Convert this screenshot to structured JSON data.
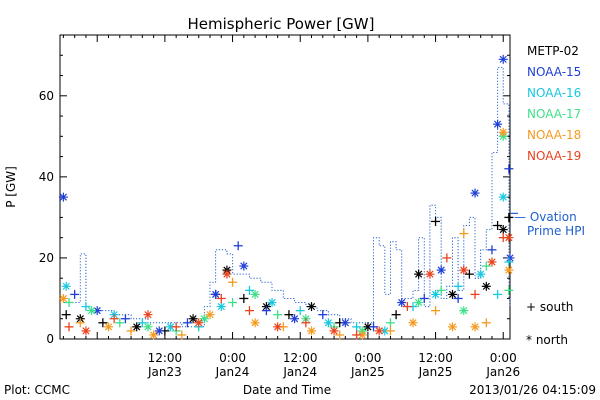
{
  "chart_data": {
    "type": "scatter",
    "title": "Hemispheric Power [GW]",
    "ylabel": "P [GW]",
    "xlabel": "Date and Time",
    "ylim": [
      0,
      75
    ],
    "yticks": [
      0,
      20,
      40,
      60
    ],
    "x_unit": "hours since Jan23 00:00",
    "xlim": [
      -6.6,
      73.2
    ],
    "xticks": [
      {
        "t": 12,
        "time": "12:00",
        "date": "Jan23"
      },
      {
        "t": 24,
        "time": "0:00",
        "date": "Jan24"
      },
      {
        "t": 36,
        "time": "12:00",
        "date": "Jan24"
      },
      {
        "t": 48,
        "time": "0:00",
        "date": "Jan25"
      },
      {
        "t": 60,
        "time": "12:00",
        "date": "Jan25"
      },
      {
        "t": 72,
        "time": "0:00",
        "date": "Jan26"
      }
    ],
    "legend_position": "right",
    "legend": [
      {
        "name": "METP-02",
        "color": "#000000"
      },
      {
        "name": "NOAA-15",
        "color": "#1f3fd6"
      },
      {
        "name": "NOAA-16",
        "color": "#18c8e0"
      },
      {
        "name": "NOAA-17",
        "color": "#3de08a"
      },
      {
        "name": "NOAA-18",
        "color": "#f59a1e"
      },
      {
        "name": "NOAA-19",
        "color": "#e8431e"
      }
    ],
    "ovation_label_1": "— Ovation",
    "ovation_label_2": "Prime HPI",
    "ovation_color": "#1f5fd0",
    "marker_south": "+ south",
    "marker_north": "* north",
    "ovation_step": [
      [
        -6,
        9
      ],
      [
        -4,
        9
      ],
      [
        -3,
        21
      ],
      [
        -2,
        7
      ],
      [
        1,
        7
      ],
      [
        3,
        6
      ],
      [
        6,
        5
      ],
      [
        9,
        4
      ],
      [
        13,
        4
      ],
      [
        15,
        3
      ],
      [
        17,
        3
      ],
      [
        19,
        8
      ],
      [
        20,
        14
      ],
      [
        21,
        22
      ],
      [
        23,
        21
      ],
      [
        24,
        16
      ],
      [
        26,
        16
      ],
      [
        27,
        15
      ],
      [
        29,
        14
      ],
      [
        31,
        12
      ],
      [
        33,
        10
      ],
      [
        35,
        9
      ],
      [
        37,
        8
      ],
      [
        39,
        7
      ],
      [
        41,
        6
      ],
      [
        43,
        5
      ],
      [
        45,
        4
      ],
      [
        47,
        4
      ],
      [
        48,
        4
      ],
      [
        49,
        25
      ],
      [
        50,
        23
      ],
      [
        51,
        11
      ],
      [
        52,
        24
      ],
      [
        53,
        22
      ],
      [
        54,
        10
      ],
      [
        56,
        12
      ],
      [
        57,
        25
      ],
      [
        58,
        8
      ],
      [
        59,
        33
      ],
      [
        60,
        30
      ],
      [
        61,
        10
      ],
      [
        62,
        13
      ],
      [
        63,
        25
      ],
      [
        64,
        12
      ],
      [
        65,
        28
      ],
      [
        66,
        30
      ],
      [
        67,
        15
      ],
      [
        68,
        22
      ],
      [
        69,
        27
      ],
      [
        70,
        46
      ],
      [
        71,
        67
      ],
      [
        72,
        58
      ],
      [
        73,
        10
      ],
      [
        73.2,
        8
      ]
    ],
    "series": [
      {
        "name": "METP-02",
        "points": [
          [
            -5.5,
            6,
            "+"
          ],
          [
            -3,
            5,
            "*"
          ],
          [
            1,
            4,
            "+"
          ],
          [
            7,
            3,
            "*"
          ],
          [
            12,
            2,
            "+"
          ],
          [
            17,
            5,
            "*"
          ],
          [
            21,
            11,
            "+"
          ],
          [
            23,
            17,
            "*"
          ],
          [
            26,
            10,
            "+"
          ],
          [
            30,
            8,
            "*"
          ],
          [
            34,
            6,
            "+"
          ],
          [
            38,
            8,
            "*"
          ],
          [
            43,
            4,
            "+"
          ],
          [
            48,
            3,
            "*"
          ],
          [
            53,
            6,
            "+"
          ],
          [
            57,
            16,
            "*"
          ],
          [
            60,
            29,
            "+"
          ],
          [
            63,
            11,
            "*"
          ],
          [
            66,
            16,
            "+"
          ],
          [
            69,
            13,
            "*"
          ],
          [
            71,
            28,
            "+"
          ],
          [
            72,
            27,
            "*"
          ],
          [
            73,
            30,
            "+"
          ]
        ]
      },
      {
        "name": "NOAA-15",
        "points": [
          [
            -6,
            35,
            "*"
          ],
          [
            -4,
            11,
            "+"
          ],
          [
            0,
            7,
            "*"
          ],
          [
            5,
            5,
            "+"
          ],
          [
            11,
            2,
            "*"
          ],
          [
            16,
            4,
            "+"
          ],
          [
            21,
            11,
            "*"
          ],
          [
            25,
            23,
            "+"
          ],
          [
            26,
            18,
            "*"
          ],
          [
            30,
            7,
            "+"
          ],
          [
            35,
            5,
            "*"
          ],
          [
            40,
            6,
            "+"
          ],
          [
            44,
            4,
            "*"
          ],
          [
            49,
            3,
            "+"
          ],
          [
            54,
            9,
            "*"
          ],
          [
            58,
            10,
            "+"
          ],
          [
            61,
            17,
            "*"
          ],
          [
            64,
            10,
            "+"
          ],
          [
            67,
            36,
            "*"
          ],
          [
            70,
            22,
            "+"
          ],
          [
            71,
            53,
            "*"
          ],
          [
            72,
            69,
            "*"
          ],
          [
            73,
            42,
            "+"
          ],
          [
            73.2,
            20,
            "*"
          ]
        ]
      },
      {
        "name": "NOAA-16",
        "points": [
          [
            -5.5,
            13,
            "*"
          ],
          [
            -2,
            8,
            "+"
          ],
          [
            3,
            6,
            "*"
          ],
          [
            8,
            4,
            "+"
          ],
          [
            13,
            3,
            "*"
          ],
          [
            18,
            3,
            "+"
          ],
          [
            22,
            8,
            "*"
          ],
          [
            27,
            12,
            "+"
          ],
          [
            31,
            9,
            "*"
          ],
          [
            36,
            7,
            "+"
          ],
          [
            41,
            4,
            "*"
          ],
          [
            46,
            3,
            "+"
          ],
          [
            51,
            2,
            "*"
          ],
          [
            56,
            8,
            "+"
          ],
          [
            60,
            11,
            "*"
          ],
          [
            64,
            13,
            "+"
          ],
          [
            68,
            16,
            "*"
          ],
          [
            71,
            11,
            "+"
          ],
          [
            72,
            35,
            "*"
          ],
          [
            73,
            19,
            "+"
          ]
        ]
      },
      {
        "name": "NOAA-17",
        "points": [
          [
            -5,
            9,
            "+"
          ],
          [
            -1,
            7,
            "*"
          ],
          [
            4,
            4,
            "+"
          ],
          [
            9,
            3,
            "*"
          ],
          [
            14,
            2,
            "+"
          ],
          [
            19,
            5,
            "*"
          ],
          [
            24,
            9,
            "+"
          ],
          [
            28,
            11,
            "*"
          ],
          [
            32,
            6,
            "+"
          ],
          [
            37,
            5,
            "*"
          ],
          [
            42,
            3,
            "+"
          ],
          [
            47,
            2,
            "*"
          ],
          [
            52,
            4,
            "+"
          ],
          [
            57,
            9,
            "*"
          ],
          [
            61,
            12,
            "+"
          ],
          [
            65,
            7,
            "*"
          ],
          [
            69,
            18,
            "+"
          ],
          [
            72,
            50,
            "*"
          ],
          [
            73,
            12,
            "+"
          ]
        ]
      },
      {
        "name": "NOAA-18",
        "points": [
          [
            -6,
            10,
            "*"
          ],
          [
            -3,
            4,
            "+"
          ],
          [
            2,
            3,
            "*"
          ],
          [
            6,
            2,
            "+"
          ],
          [
            10,
            1,
            "*"
          ],
          [
            15,
            1,
            "+"
          ],
          [
            20,
            6,
            "*"
          ],
          [
            24,
            14,
            "+"
          ],
          [
            28,
            4,
            "*"
          ],
          [
            33,
            3,
            "+"
          ],
          [
            38,
            2,
            "*"
          ],
          [
            43,
            1,
            "+"
          ],
          [
            47,
            1,
            "*"
          ],
          [
            52,
            2,
            "+"
          ],
          [
            56,
            4,
            "*"
          ],
          [
            60,
            7,
            "+"
          ],
          [
            63,
            3,
            "*"
          ],
          [
            65,
            26,
            "+"
          ],
          [
            67,
            3,
            "*"
          ],
          [
            69,
            4,
            "+"
          ],
          [
            72,
            51,
            "*"
          ],
          [
            73,
            17,
            "*"
          ]
        ]
      },
      {
        "name": "NOAA-19",
        "points": [
          [
            -5,
            3,
            "+"
          ],
          [
            -2,
            2,
            "*"
          ],
          [
            3,
            5,
            "+"
          ],
          [
            9,
            6,
            "*"
          ],
          [
            14,
            3,
            "+"
          ],
          [
            18,
            4,
            "*"
          ],
          [
            22,
            10,
            "+"
          ],
          [
            23,
            16,
            "*"
          ],
          [
            27,
            7,
            "+"
          ],
          [
            32,
            3,
            "*"
          ],
          [
            37,
            4,
            "+"
          ],
          [
            42,
            2,
            "*"
          ],
          [
            46,
            1,
            "+"
          ],
          [
            50,
            2,
            "*"
          ],
          [
            55,
            8,
            "+"
          ],
          [
            59,
            16,
            "*"
          ],
          [
            62,
            20,
            "+"
          ],
          [
            65,
            17,
            "*"
          ],
          [
            67,
            11,
            "+"
          ],
          [
            70,
            19,
            "*"
          ],
          [
            72,
            25,
            "+"
          ],
          [
            73,
            25,
            "*"
          ]
        ]
      }
    ]
  },
  "footer": {
    "plot_credit": "Plot: CCMC",
    "timestamp": "2013/01/26 04:15:09"
  }
}
